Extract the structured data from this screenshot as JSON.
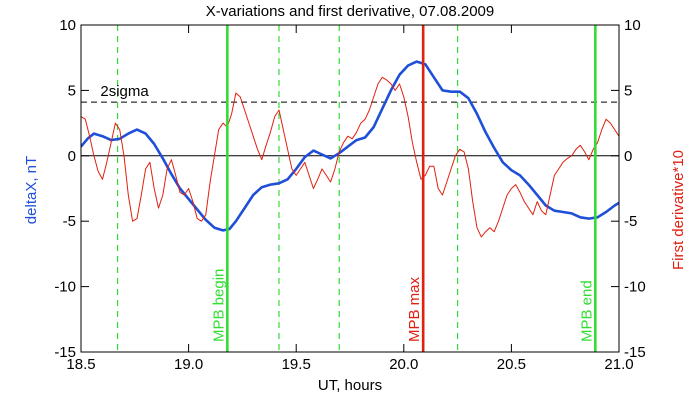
{
  "chart_data": {
    "type": "line",
    "title": "X-variations and first derivative, 07.08.2009",
    "xlabel": "UT, hours",
    "ylabel_left": "deltaX, nT",
    "ylabel_right": "First derivative*10",
    "xlim": [
      18.5,
      21.0
    ],
    "ylim": [
      -15,
      10
    ],
    "x_ticks": [
      18.5,
      19.0,
      19.5,
      20.0,
      20.5,
      21.0
    ],
    "x_tick_labels": [
      "18.5",
      "19.0",
      "19.5",
      "20.0",
      "20.5",
      "21.0"
    ],
    "y_ticks": [
      -15,
      -10,
      -5,
      0,
      5,
      10
    ],
    "y_tick_labels": [
      "-15",
      "-10",
      "-5",
      "0",
      "5",
      "10"
    ],
    "grid": false,
    "colors": {
      "deltaX": "#1f4fd8",
      "derivative": "#e02010",
      "mpb_boundary": "#33dd33",
      "mpb_max": "#e02010",
      "dashed_green": "#33dd33"
    },
    "threshold": {
      "label": "2sigma",
      "value": 4.1
    },
    "zero_line": 0,
    "vlines_solid": [
      {
        "x": 19.18,
        "label": "MPB begin",
        "kind": "mpb_boundary"
      },
      {
        "x": 20.09,
        "label": "MPB max",
        "kind": "mpb_max"
      },
      {
        "x": 20.89,
        "label": "MPB end",
        "kind": "mpb_boundary"
      }
    ],
    "vlines_dashed": [
      18.67,
      19.42,
      19.7,
      20.25
    ],
    "series": [
      {
        "key": "deltaX",
        "x": [
          18.5,
          18.53,
          18.56,
          18.6,
          18.64,
          18.68,
          18.72,
          18.76,
          18.8,
          18.84,
          18.88,
          18.92,
          18.96,
          19.0,
          19.04,
          19.08,
          19.12,
          19.16,
          19.19,
          19.22,
          19.26,
          19.3,
          19.34,
          19.38,
          19.42,
          19.46,
          19.5,
          19.54,
          19.58,
          19.62,
          19.66,
          19.7,
          19.74,
          19.78,
          19.82,
          19.86,
          19.9,
          19.94,
          19.98,
          20.02,
          20.06,
          20.1,
          20.14,
          20.18,
          20.22,
          20.26,
          20.3,
          20.34,
          20.38,
          20.42,
          20.46,
          20.5,
          20.54,
          20.58,
          20.62,
          20.66,
          20.7,
          20.74,
          20.78,
          20.82,
          20.86,
          20.9,
          20.94,
          20.98,
          21.0
        ],
        "y": [
          0.7,
          1.3,
          1.7,
          1.5,
          1.2,
          1.3,
          1.7,
          2.0,
          1.7,
          0.9,
          -0.2,
          -1.4,
          -2.5,
          -3.3,
          -4.1,
          -4.9,
          -5.5,
          -5.7,
          -5.6,
          -5.0,
          -4.0,
          -3.0,
          -2.4,
          -2.2,
          -2.1,
          -1.8,
          -1.0,
          -0.1,
          0.4,
          0.1,
          -0.2,
          0.2,
          0.7,
          1.2,
          1.4,
          2.2,
          3.6,
          5.0,
          6.2,
          6.9,
          7.2,
          7.0,
          6.0,
          5.0,
          4.9,
          4.9,
          4.4,
          3.2,
          1.8,
          0.6,
          -0.5,
          -1.1,
          -1.5,
          -2.2,
          -3.0,
          -3.8,
          -4.2,
          -4.3,
          -4.4,
          -4.7,
          -4.8,
          -4.7,
          -4.3,
          -3.8,
          -3.6
        ]
      },
      {
        "key": "derivative",
        "x": [
          18.5,
          18.52,
          18.54,
          18.56,
          18.58,
          18.6,
          18.62,
          18.64,
          18.66,
          18.68,
          18.7,
          18.72,
          18.74,
          18.76,
          18.78,
          18.8,
          18.82,
          18.84,
          18.86,
          18.88,
          18.9,
          18.92,
          18.94,
          18.96,
          18.98,
          19.0,
          19.02,
          19.04,
          19.06,
          19.08,
          19.1,
          19.12,
          19.14,
          19.16,
          19.18,
          19.2,
          19.22,
          19.24,
          19.26,
          19.28,
          19.3,
          19.32,
          19.34,
          19.36,
          19.38,
          19.4,
          19.42,
          19.44,
          19.46,
          19.48,
          19.5,
          19.52,
          19.54,
          19.56,
          19.58,
          19.6,
          19.62,
          19.64,
          19.66,
          19.68,
          19.7,
          19.72,
          19.74,
          19.76,
          19.78,
          19.8,
          19.82,
          19.84,
          19.86,
          19.88,
          19.9,
          19.92,
          19.94,
          19.96,
          19.98,
          20.0,
          20.02,
          20.04,
          20.06,
          20.08,
          20.1,
          20.12,
          20.14,
          20.16,
          20.18,
          20.2,
          20.22,
          20.24,
          20.26,
          20.28,
          20.3,
          20.32,
          20.34,
          20.36,
          20.38,
          20.4,
          20.42,
          20.44,
          20.46,
          20.48,
          20.5,
          20.52,
          20.54,
          20.56,
          20.58,
          20.6,
          20.62,
          20.64,
          20.66,
          20.68,
          20.7,
          20.72,
          20.74,
          20.76,
          20.78,
          20.8,
          20.82,
          20.84,
          20.86,
          20.88,
          20.9,
          20.92,
          20.94,
          20.96,
          20.98,
          21.0
        ],
        "y": [
          3.0,
          2.8,
          1.5,
          0.0,
          -1.2,
          -1.8,
          -0.5,
          1.0,
          2.5,
          2.0,
          0.0,
          -3.0,
          -5.0,
          -4.8,
          -3.0,
          -1.0,
          -0.5,
          -2.5,
          -4.0,
          -3.0,
          -1.0,
          -0.3,
          -1.5,
          -2.8,
          -3.0,
          -2.5,
          -3.5,
          -4.8,
          -5.0,
          -4.5,
          -2.0,
          0.0,
          2.0,
          2.5,
          2.2,
          3.2,
          4.8,
          4.5,
          3.5,
          2.5,
          1.5,
          0.5,
          -0.3,
          0.8,
          1.8,
          3.0,
          3.5,
          2.0,
          0.5,
          -1.0,
          -1.5,
          -1.0,
          -0.5,
          -1.5,
          -2.5,
          -1.8,
          -1.0,
          -1.5,
          -2.0,
          -1.0,
          0.3,
          1.0,
          1.5,
          1.3,
          1.8,
          2.5,
          2.8,
          3.5,
          4.5,
          5.5,
          6.0,
          5.8,
          5.5,
          5.0,
          5.5,
          4.5,
          3.0,
          1.0,
          -0.5,
          -1.8,
          -1.5,
          -0.8,
          -0.8,
          -2.5,
          -3.0,
          -2.0,
          -1.0,
          0.0,
          0.5,
          0.3,
          -1.0,
          -3.5,
          -5.5,
          -6.2,
          -5.8,
          -5.5,
          -5.8,
          -5.0,
          -4.0,
          -3.0,
          -2.5,
          -2.2,
          -2.8,
          -3.5,
          -4.0,
          -4.5,
          -3.5,
          -4.2,
          -4.5,
          -3.0,
          -1.5,
          -1.0,
          -0.5,
          -0.2,
          0.0,
          0.5,
          0.8,
          0.3,
          -0.3,
          0.5,
          1.0,
          2.0,
          2.8,
          2.5,
          2.0,
          1.5
        ]
      }
    ]
  }
}
